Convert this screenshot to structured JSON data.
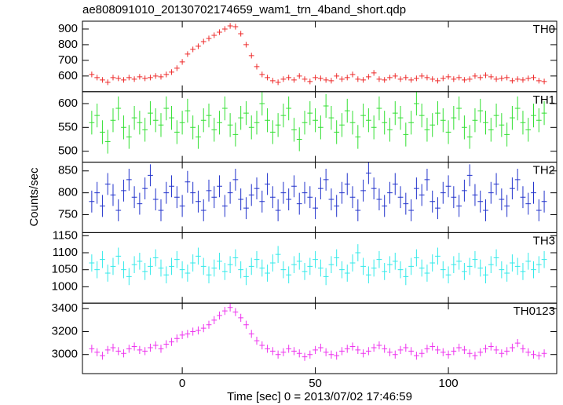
{
  "chart_data": {
    "type": "line",
    "title": "ae808091010_20130702174659_wam1_trn_4band_short.qdp",
    "xlabel": "Time [sec] 0 = 2013/07/02 17:46:59",
    "ylabel": "Counts/sec",
    "xlim": [
      -37.5,
      140.7
    ],
    "xticks": [
      0,
      50,
      100
    ],
    "x": [
      -34,
      -32,
      -30,
      -28,
      -26,
      -24,
      -22,
      -20,
      -18,
      -16,
      -14,
      -12,
      -10,
      -8,
      -6,
      -4,
      -2,
      0,
      2,
      4,
      6,
      8,
      10,
      12,
      14,
      16,
      18,
      20,
      22,
      24,
      26,
      28,
      30,
      32,
      34,
      36,
      38,
      40,
      42,
      44,
      46,
      48,
      50,
      52,
      54,
      56,
      58,
      60,
      62,
      64,
      66,
      68,
      70,
      72,
      74,
      76,
      78,
      80,
      82,
      84,
      86,
      88,
      90,
      92,
      94,
      96,
      98,
      100,
      102,
      104,
      106,
      108,
      110,
      112,
      114,
      116,
      118,
      120,
      122,
      124,
      126,
      128,
      130,
      132,
      134,
      136
    ],
    "series": [
      {
        "name": "TH0",
        "color": "#ee2b2b",
        "ylim": [
          500,
          950
        ],
        "yticks": [
          600,
          700,
          800,
          900
        ],
        "error": 18,
        "values": [
          610,
          590,
          575,
          560,
          590,
          585,
          575,
          590,
          580,
          595,
          585,
          590,
          600,
          595,
          610,
          625,
          650,
          690,
          740,
          770,
          790,
          820,
          840,
          860,
          880,
          900,
          920,
          915,
          870,
          800,
          730,
          660,
          610,
          590,
          570,
          560,
          580,
          590,
          575,
          600,
          580,
          565,
          590,
          585,
          575,
          570,
          600,
          580,
          590,
          610,
          580,
          575,
          595,
          620,
          580,
          575,
          590,
          600,
          580,
          590,
          575,
          585,
          600,
          590,
          580,
          570,
          585,
          595,
          580,
          590,
          575,
          580,
          600,
          590,
          605,
          595,
          580,
          585,
          590,
          570,
          580,
          575,
          585,
          590,
          570,
          565
        ]
      },
      {
        "name": "TH1",
        "color": "#33e033",
        "ylim": [
          477,
          625
        ],
        "yticks": [
          500,
          550,
          600
        ],
        "error": 25,
        "values": [
          560,
          575,
          540,
          520,
          565,
          590,
          550,
          530,
          570,
          560,
          545,
          580,
          565,
          555,
          590,
          570,
          540,
          560,
          585,
          550,
          530,
          565,
          575,
          545,
          560,
          590,
          555,
          535,
          570,
          580,
          550,
          560,
          600,
          565,
          540,
          555,
          575,
          590,
          545,
          525,
          560,
          580,
          565,
          550,
          595,
          570,
          540,
          555,
          585,
          560,
          530,
          575,
          565,
          550,
          590,
          560,
          545,
          580,
          570,
          535,
          560,
          600,
          575,
          545,
          555,
          580,
          565,
          540,
          570,
          590,
          550,
          530,
          565,
          585,
          560,
          545,
          575,
          555,
          535,
          570,
          590,
          560,
          545,
          575,
          565,
          580
        ]
      },
      {
        "name": "TH2",
        "color": "#2233cc",
        "ylim": [
          709,
          870
        ],
        "yticks": [
          750,
          800,
          850
        ],
        "error": 25,
        "values": [
          780,
          800,
          770,
          820,
          795,
          760,
          805,
          830,
          790,
          775,
          810,
          840,
          785,
          760,
          800,
          815,
          790,
          770,
          825,
          800,
          780,
          760,
          805,
          790,
          815,
          770,
          800,
          830,
          785,
          765,
          795,
          810,
          780,
          820,
          790,
          760,
          800,
          785,
          815,
          775,
          800,
          790,
          765,
          810,
          830,
          785,
          770,
          800,
          820,
          790,
          760,
          805,
          845,
          810,
          785,
          770,
          800,
          820,
          790,
          775,
          760,
          810,
          795,
          830,
          780,
          765,
          800,
          815,
          790,
          770,
          805,
          840,
          795,
          780,
          760,
          800,
          820,
          785,
          770,
          810,
          830,
          790,
          775,
          800,
          760,
          780
        ]
      },
      {
        "name": "TH3",
        "color": "#33eaea",
        "ylim": [
          952,
          1159
        ],
        "yticks": [
          1000,
          1050,
          1100,
          1150
        ],
        "error": 25,
        "values": [
          1070,
          1050,
          1080,
          1040,
          1060,
          1090,
          1050,
          1030,
          1065,
          1075,
          1045,
          1060,
          1085,
          1055,
          1035,
          1060,
          1080,
          1050,
          1040,
          1070,
          1090,
          1060,
          1035,
          1055,
          1075,
          1045,
          1065,
          1085,
          1050,
          1030,
          1060,
          1080,
          1055,
          1040,
          1070,
          1095,
          1050,
          1035,
          1065,
          1075,
          1045,
          1060,
          1080,
          1055,
          1030,
          1065,
          1085,
          1050,
          1040,
          1070,
          1100,
          1060,
          1035,
          1055,
          1080,
          1045,
          1065,
          1075,
          1050,
          1030,
          1060,
          1085,
          1055,
          1040,
          1070,
          1090,
          1050,
          1035,
          1065,
          1075,
          1045,
          1060,
          1080,
          1055,
          1035,
          1065,
          1085,
          1050,
          1040,
          1070,
          1060,
          1045,
          1075,
          1050,
          1065,
          1080
        ]
      },
      {
        "name": "TH0123",
        "color": "#ee33ee",
        "ylim": [
          2834,
          3448
        ],
        "yticks": [
          3000,
          3200,
          3400
        ],
        "error": 35,
        "values": [
          3050,
          3020,
          2990,
          3040,
          3060,
          3030,
          3010,
          3050,
          3070,
          3040,
          3030,
          3060,
          3080,
          3050,
          3090,
          3110,
          3140,
          3170,
          3180,
          3200,
          3210,
          3230,
          3260,
          3300,
          3340,
          3380,
          3410,
          3370,
          3320,
          3260,
          3180,
          3120,
          3080,
          3050,
          3030,
          3000,
          3020,
          3050,
          3030,
          3010,
          2980,
          3000,
          3040,
          3060,
          3020,
          3000,
          2990,
          3030,
          3050,
          3070,
          3040,
          3010,
          3030,
          3060,
          3080,
          3050,
          3020,
          3000,
          3040,
          3060,
          3030,
          2990,
          3010,
          3050,
          3070,
          3040,
          3020,
          3000,
          3030,
          3060,
          3040,
          3010,
          2990,
          3020,
          3050,
          3070,
          3040,
          3010,
          3030,
          3060,
          3100,
          3050,
          3020,
          3000,
          2990,
          3010
        ]
      }
    ]
  }
}
